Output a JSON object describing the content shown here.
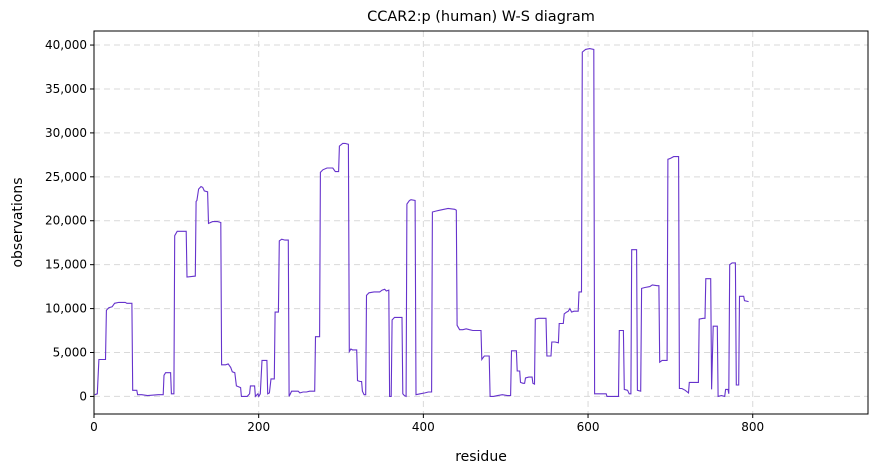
{
  "chart_data": {
    "type": "line",
    "title": "CCAR2:p (human) W-S diagram",
    "xlabel": "residue",
    "ylabel": "observations",
    "xlim": [
      0,
      940
    ],
    "ylim": [
      -2000,
      41600
    ],
    "x_ticks": [
      0,
      200,
      400,
      600,
      800
    ],
    "x_tick_labels": [
      "0",
      "200",
      "400",
      "600",
      "800"
    ],
    "y_ticks": [
      0,
      5000,
      10000,
      15000,
      20000,
      25000,
      30000,
      35000,
      40000
    ],
    "y_tick_labels": [
      "0",
      "5,000",
      "10,000",
      "15,000",
      "20,000",
      "25,000",
      "30,000",
      "35,000",
      "40,000"
    ],
    "grid": true,
    "color": "#6633cc",
    "series": [
      {
        "points": [
          [
            1,
            200
          ],
          [
            4,
            300
          ],
          [
            6,
            4200
          ],
          [
            14,
            4200
          ],
          [
            15,
            9800
          ],
          [
            18,
            10100
          ],
          [
            22,
            10200
          ],
          [
            25,
            10600
          ],
          [
            30,
            10700
          ],
          [
            38,
            10700
          ],
          [
            40,
            10600
          ],
          [
            46,
            10600
          ],
          [
            47,
            700
          ],
          [
            52,
            700
          ],
          [
            53,
            200
          ],
          [
            58,
            200
          ],
          [
            65,
            100
          ],
          [
            78,
            200
          ],
          [
            84,
            200
          ],
          [
            85,
            2400
          ],
          [
            87,
            2700
          ],
          [
            93,
            2700
          ],
          [
            94,
            300
          ],
          [
            97,
            300
          ],
          [
            98,
            18300
          ],
          [
            101,
            18800
          ],
          [
            112,
            18800
          ],
          [
            113,
            13600
          ],
          [
            123,
            13700
          ],
          [
            124,
            22200
          ],
          [
            125,
            22300
          ],
          [
            127,
            23600
          ],
          [
            130,
            23900
          ],
          [
            132,
            23800
          ],
          [
            134,
            23400
          ],
          [
            138,
            23300
          ],
          [
            139,
            19700
          ],
          [
            144,
            19900
          ],
          [
            150,
            19900
          ],
          [
            154,
            19800
          ],
          [
            155,
            3600
          ],
          [
            160,
            3600
          ],
          [
            163,
            3700
          ],
          [
            166,
            3300
          ],
          [
            168,
            2800
          ],
          [
            171,
            2700
          ],
          [
            173,
            1200
          ],
          [
            178,
            1000
          ],
          [
            179,
            0
          ],
          [
            186,
            0
          ],
          [
            189,
            300
          ],
          [
            190,
            1200
          ],
          [
            195,
            1200
          ],
          [
            196,
            0
          ],
          [
            199,
            300
          ],
          [
            200,
            0
          ],
          [
            202,
            300
          ],
          [
            204,
            4100
          ],
          [
            210,
            4100
          ],
          [
            211,
            300
          ],
          [
            213,
            400
          ],
          [
            215,
            2000
          ],
          [
            219,
            2000
          ],
          [
            220,
            9600
          ],
          [
            224,
            9600
          ],
          [
            225,
            17700
          ],
          [
            228,
            17900
          ],
          [
            232,
            17800
          ],
          [
            236,
            17800
          ],
          [
            237,
            0
          ],
          [
            240,
            600
          ],
          [
            248,
            600
          ],
          [
            250,
            400
          ],
          [
            254,
            500
          ],
          [
            258,
            500
          ],
          [
            262,
            600
          ],
          [
            268,
            600
          ],
          [
            269,
            6800
          ],
          [
            274,
            6800
          ],
          [
            275,
            25500
          ],
          [
            278,
            25800
          ],
          [
            283,
            26000
          ],
          [
            290,
            26000
          ],
          [
            293,
            25600
          ],
          [
            297,
            25600
          ],
          [
            298,
            28500
          ],
          [
            302,
            28800
          ],
          [
            305,
            28800
          ],
          [
            309,
            28700
          ],
          [
            310,
            5100
          ],
          [
            312,
            5400
          ],
          [
            314,
            5300
          ],
          [
            319,
            5300
          ],
          [
            320,
            1800
          ],
          [
            323,
            1700
          ],
          [
            325,
            1700
          ],
          [
            326,
            600
          ],
          [
            328,
            200
          ],
          [
            330,
            200
          ],
          [
            331,
            11500
          ],
          [
            334,
            11800
          ],
          [
            340,
            11900
          ],
          [
            347,
            11900
          ],
          [
            350,
            12100
          ],
          [
            353,
            12200
          ],
          [
            355,
            12000
          ],
          [
            358,
            12100
          ],
          [
            359,
            0
          ],
          [
            361,
            0
          ],
          [
            362,
            8700
          ],
          [
            365,
            9000
          ],
          [
            370,
            9000
          ],
          [
            374,
            9000
          ],
          [
            375,
            300
          ],
          [
            377,
            100
          ],
          [
            379,
            0
          ],
          [
            380,
            21900
          ],
          [
            383,
            22300
          ],
          [
            385,
            22400
          ],
          [
            390,
            22300
          ],
          [
            391,
            200
          ],
          [
            396,
            300
          ],
          [
            402,
            400
          ],
          [
            406,
            500
          ],
          [
            410,
            500
          ],
          [
            411,
            21000
          ],
          [
            415,
            21100
          ],
          [
            420,
            21200
          ],
          [
            430,
            21400
          ],
          [
            438,
            21300
          ],
          [
            440,
            21200
          ],
          [
            441,
            8100
          ],
          [
            444,
            7600
          ],
          [
            448,
            7600
          ],
          [
            452,
            7700
          ],
          [
            456,
            7600
          ],
          [
            460,
            7500
          ],
          [
            470,
            7500
          ],
          [
            471,
            4200
          ],
          [
            474,
            4600
          ],
          [
            480,
            4600
          ],
          [
            481,
            0
          ],
          [
            485,
            0
          ],
          [
            490,
            100
          ],
          [
            496,
            200
          ],
          [
            502,
            100
          ],
          [
            506,
            100
          ],
          [
            507,
            5200
          ],
          [
            513,
            5200
          ],
          [
            514,
            2900
          ],
          [
            517,
            2900
          ],
          [
            518,
            1600
          ],
          [
            521,
            1500
          ],
          [
            523,
            1500
          ],
          [
            524,
            2100
          ],
          [
            528,
            2200
          ],
          [
            532,
            2200
          ],
          [
            533,
            1500
          ],
          [
            535,
            1400
          ],
          [
            536,
            8800
          ],
          [
            540,
            8900
          ],
          [
            549,
            8900
          ],
          [
            550,
            4600
          ],
          [
            555,
            4600
          ],
          [
            556,
            6200
          ],
          [
            560,
            6200
          ],
          [
            564,
            6100
          ],
          [
            565,
            8300
          ],
          [
            570,
            8300
          ],
          [
            571,
            9400
          ],
          [
            574,
            9600
          ],
          [
            576,
            9700
          ],
          [
            578,
            10000
          ],
          [
            580,
            9600
          ],
          [
            583,
            9700
          ],
          [
            588,
            9700
          ],
          [
            589,
            11900
          ],
          [
            592,
            11900
          ],
          [
            593,
            39200
          ],
          [
            597,
            39500
          ],
          [
            602,
            39600
          ],
          [
            607,
            39500
          ],
          [
            608,
            300
          ],
          [
            614,
            300
          ],
          [
            622,
            300
          ],
          [
            623,
            0
          ],
          [
            630,
            0
          ],
          [
            637,
            0
          ],
          [
            638,
            7500
          ],
          [
            643,
            7500
          ],
          [
            644,
            800
          ],
          [
            648,
            700
          ],
          [
            650,
            300
          ],
          [
            652,
            300
          ],
          [
            653,
            16700
          ],
          [
            659,
            16700
          ],
          [
            660,
            700
          ],
          [
            664,
            600
          ],
          [
            665,
            12300
          ],
          [
            669,
            12400
          ],
          [
            675,
            12500
          ],
          [
            678,
            12700
          ],
          [
            684,
            12600
          ],
          [
            686,
            12600
          ],
          [
            687,
            3900
          ],
          [
            690,
            4100
          ],
          [
            696,
            4100
          ],
          [
            697,
            27000
          ],
          [
            700,
            27100
          ],
          [
            704,
            27300
          ],
          [
            710,
            27300
          ],
          [
            711,
            900
          ],
          [
            714,
            900
          ],
          [
            718,
            700
          ],
          [
            722,
            400
          ],
          [
            723,
            1600
          ],
          [
            728,
            1600
          ],
          [
            734,
            1600
          ],
          [
            735,
            8800
          ],
          [
            740,
            8900
          ],
          [
            742,
            8900
          ],
          [
            743,
            13400
          ],
          [
            749,
            13400
          ],
          [
            750,
            800
          ],
          [
            752,
            8000
          ],
          [
            757,
            8000
          ],
          [
            758,
            0
          ],
          [
            762,
            100
          ],
          [
            766,
            0
          ],
          [
            767,
            800
          ],
          [
            770,
            800
          ],
          [
            771,
            300
          ],
          [
            772,
            15000
          ],
          [
            775,
            15200
          ],
          [
            779,
            15200
          ],
          [
            780,
            1300
          ],
          [
            783,
            1300
          ],
          [
            784,
            11400
          ],
          [
            789,
            11400
          ],
          [
            790,
            10900
          ],
          [
            795,
            10800
          ]
        ]
      }
    ]
  }
}
